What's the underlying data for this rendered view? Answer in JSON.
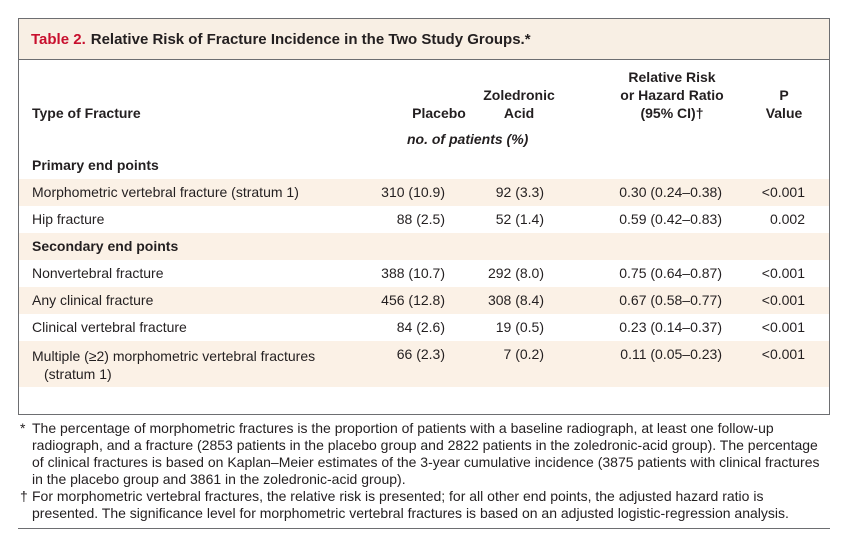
{
  "table": {
    "number": "Table 2.",
    "title": "Relative Risk of Fracture Incidence in the Two Study Groups.*",
    "columns": {
      "type": "Type of Fracture",
      "placebo": "Placebo",
      "zoledronic_line1": "Zoledronic",
      "zoledronic_line2": "Acid",
      "rr_line1": "Relative Risk",
      "rr_line2": "or Hazard Ratio",
      "rr_line3": "(95% CI)†",
      "p_line1": "P",
      "p_line2": "Value"
    },
    "units": "no. of patients (%)",
    "sections": [
      {
        "label": "Primary end points",
        "rows": [
          {
            "type": "Morphometric vertebral fracture (stratum 1)",
            "placebo": "310 (10.9)",
            "zoledronic": "92 (3.3)",
            "rr": "0.30 (0.24–0.38)",
            "p": "<0.001"
          },
          {
            "type": "Hip fracture",
            "placebo": "88 (2.5)",
            "zoledronic": "52 (1.4)",
            "rr": "0.59 (0.42–0.83)",
            "p": "0.002"
          }
        ]
      },
      {
        "label": "Secondary end points",
        "rows": [
          {
            "type": "Nonvertebral fracture",
            "placebo": "388 (10.7)",
            "zoledronic": "292 (8.0)",
            "rr": "0.75 (0.64–0.87)",
            "p": "<0.001"
          },
          {
            "type": "Any clinical fracture",
            "placebo": "456 (12.8)",
            "zoledronic": "308 (8.4)",
            "rr": "0.67 (0.58–0.77)",
            "p": "<0.001"
          },
          {
            "type": "Clinical vertebral fracture",
            "placebo": "84 (2.6)",
            "zoledronic": "19 (0.5)",
            "rr": "0.23 (0.14–0.37)",
            "p": "<0.001"
          },
          {
            "type": "Multiple (≥2) morphometric vertebral fractures",
            "type_line2": "(stratum 1)",
            "placebo": "66 (2.3)",
            "zoledronic": "7 (0.2)",
            "rr": "0.11 (0.05–0.23)",
            "p": "<0.001"
          }
        ]
      }
    ]
  },
  "footnotes": [
    {
      "symbol": "*",
      "text": "The percentage of morphometric fractures is the proportion of patients with a baseline radiograph, at least one follow-up radiograph, and a fracture (2853 patients in the placebo group and 2822 patients in the zoledronic-acid group). The percentage of clinical fractures is based on Kaplan–Meier estimates of the 3-year cumulative incidence (3875 patients with clinical fractures in the placebo group and 3861 in the zoledronic-acid group)."
    },
    {
      "symbol": "†",
      "text": "For morphometric vertebral fractures, the relative risk is presented; for all other end points, the adjusted hazard ratio is presented. The significance level for morphometric vertebral fractures is based on an adjusted logistic-regression analysis."
    }
  ],
  "colors": {
    "title_number": "#c8102e",
    "title_bg": "#f8efe4",
    "row_shade": "#fbf1e6",
    "border": "#6d6e71"
  }
}
